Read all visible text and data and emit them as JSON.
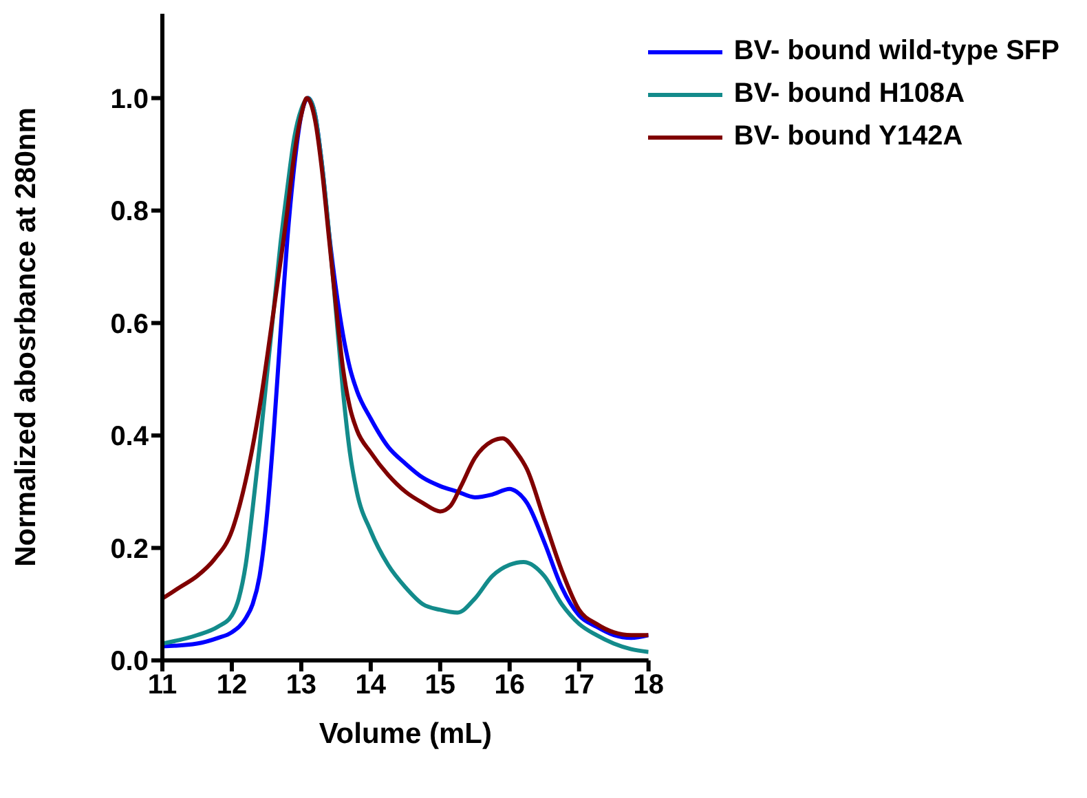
{
  "chart_data": {
    "type": "line",
    "xlabel": "Volume (mL)",
    "ylabel": "Normalized abosrbance at 280nm",
    "xlim": [
      11,
      18
    ],
    "ylim": [
      0,
      1.15
    ],
    "xticks": [
      11,
      12,
      13,
      14,
      15,
      16,
      17,
      18
    ],
    "yticks": [
      {
        "value": 0,
        "label": "0.0"
      },
      {
        "value": 0.2,
        "label": "0.2"
      },
      {
        "value": 0.4,
        "label": "0.4"
      },
      {
        "value": 0.6,
        "label": "0.6"
      },
      {
        "value": 0.8,
        "label": "0.8"
      },
      {
        "value": 1,
        "label": "1.0"
      }
    ],
    "grid": false,
    "legend": "top right",
    "marker": "none",
    "line_style": "solid",
    "series": [
      {
        "name": "BV- bound wild-type SFP",
        "color": "#0000ff",
        "x": [
          11,
          11.5,
          11.8,
          12,
          12.2,
          12.3,
          12.4,
          12.5,
          12.6,
          12.7,
          12.8,
          12.9,
          13,
          13.1,
          13.2,
          13.3,
          13.4,
          13.5,
          13.6,
          13.7,
          13.8,
          14,
          14.25,
          14.5,
          14.75,
          15,
          15.25,
          15.5,
          15.75,
          16,
          16.1,
          16.25,
          16.5,
          16.75,
          17,
          17.25,
          17.5,
          17.75,
          18
        ],
        "values": [
          0.025,
          0.03,
          0.04,
          0.05,
          0.075,
          0.1,
          0.15,
          0.25,
          0.4,
          0.58,
          0.75,
          0.88,
          0.97,
          1,
          0.97,
          0.88,
          0.76,
          0.66,
          0.58,
          0.52,
          0.48,
          0.43,
          0.38,
          0.35,
          0.325,
          0.31,
          0.3,
          0.29,
          0.295,
          0.305,
          0.3,
          0.28,
          0.21,
          0.13,
          0.08,
          0.06,
          0.045,
          0.04,
          0.045
        ]
      },
      {
        "name": "BV- bound H108A",
        "color": "#138b8b",
        "x": [
          11,
          11.5,
          11.8,
          12,
          12.1,
          12.2,
          12.3,
          12.4,
          12.5,
          12.6,
          12.7,
          12.8,
          12.9,
          13,
          13.1,
          13.2,
          13.3,
          13.4,
          13.5,
          13.6,
          13.7,
          13.8,
          14,
          14.25,
          14.5,
          14.75,
          15,
          15.25,
          15.5,
          15.75,
          16,
          16.2,
          16.5,
          16.75,
          17,
          17.25,
          17.5,
          17.75,
          18
        ],
        "values": [
          0.03,
          0.045,
          0.06,
          0.08,
          0.11,
          0.17,
          0.27,
          0.38,
          0.5,
          0.62,
          0.74,
          0.84,
          0.93,
          0.98,
          1,
          0.97,
          0.88,
          0.76,
          0.62,
          0.48,
          0.37,
          0.3,
          0.23,
          0.17,
          0.13,
          0.1,
          0.09,
          0.085,
          0.11,
          0.15,
          0.17,
          0.175,
          0.15,
          0.1,
          0.065,
          0.045,
          0.03,
          0.02,
          0.015
        ]
      },
      {
        "name": "BV- bound Y142A",
        "color": "#800000",
        "x": [
          11,
          11.25,
          11.5,
          11.75,
          12,
          12.2,
          12.4,
          12.6,
          12.8,
          12.9,
          13,
          13.08,
          13.2,
          13.3,
          13.4,
          13.5,
          13.6,
          13.7,
          13.8,
          14,
          14.25,
          14.5,
          14.75,
          15,
          15.15,
          15.3,
          15.5,
          15.75,
          15.9,
          16.1,
          16.25,
          16.5,
          16.75,
          17,
          17.25,
          17.5,
          17.75,
          18
        ],
        "values": [
          0.11,
          0.13,
          0.15,
          0.18,
          0.23,
          0.32,
          0.45,
          0.62,
          0.8,
          0.9,
          0.97,
          1,
          0.96,
          0.87,
          0.75,
          0.63,
          0.52,
          0.45,
          0.41,
          0.37,
          0.33,
          0.3,
          0.28,
          0.265,
          0.275,
          0.31,
          0.36,
          0.39,
          0.395,
          0.37,
          0.34,
          0.25,
          0.16,
          0.09,
          0.065,
          0.05,
          0.045,
          0.045
        ]
      }
    ]
  }
}
